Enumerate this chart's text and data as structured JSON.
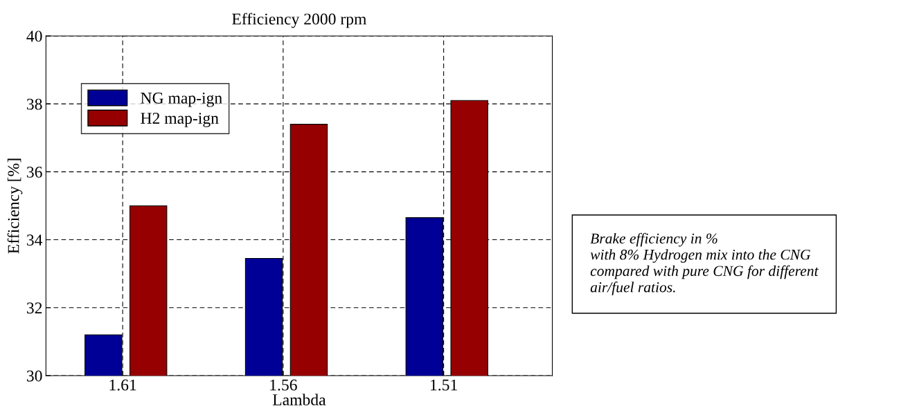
{
  "chart_data": {
    "type": "bar",
    "title": "Efficiency 2000 rpm",
    "xlabel": "Lambda",
    "ylabel": "Efficiency [%]",
    "categories": [
      "1.61",
      "1.56",
      "1.51"
    ],
    "series": [
      {
        "name": "NG map-ign",
        "color": "#000096",
        "values": [
          31.2,
          33.45,
          34.65
        ]
      },
      {
        "name": "H2 map-ign",
        "color": "#960000",
        "values": [
          35.0,
          37.4,
          38.1
        ]
      }
    ],
    "ylim": [
      30,
      40
    ],
    "yticks": [
      30,
      32,
      34,
      36,
      38,
      40
    ],
    "grid": true,
    "legend": "top left",
    "annotations": [
      "Brake efficiency in %\nwith 8% Hydrogen mix into the CNG\ncompared with pure CNG for different\nair/fuel ratios."
    ]
  }
}
